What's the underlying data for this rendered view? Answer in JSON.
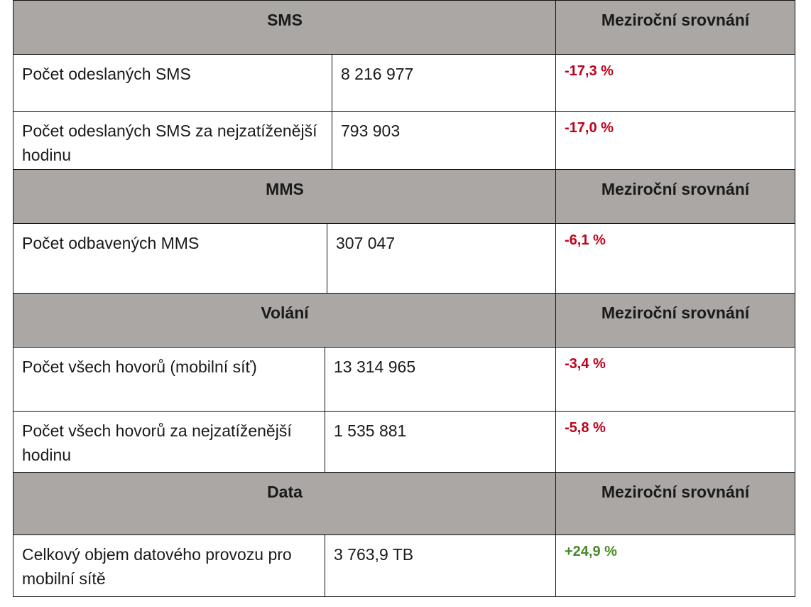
{
  "sections": [
    {
      "header": "SMS",
      "compare_header": "Meziroční srovnání",
      "rows": [
        {
          "label": "Počet odeslaných SMS",
          "value": "8 216 977",
          "change": "-17,3 %"
        },
        {
          "label": "Počet odeslaných SMS za nejzatíženější hodinu",
          "value": "793 903",
          "change": "-17,0 %"
        }
      ]
    },
    {
      "header": "MMS",
      "compare_header": "Meziroční srovnání",
      "rows": [
        {
          "label": "Počet odbavených MMS",
          "value": "307 047",
          "change": "-6,1 %"
        }
      ]
    },
    {
      "header": "Volání",
      "compare_header": "Meziroční srovnání",
      "rows": [
        {
          "label": "Počet všech hovorů (mobilní síť)",
          "value": "13 314 965",
          "change": "-3,4 %"
        },
        {
          "label": "Počet všech hovorů za nejzatíženější hodinu",
          "value": "1 535 881",
          "change": "-5,8 %"
        }
      ]
    },
    {
      "header": "Data",
      "compare_header": "Meziroční srovnání",
      "rows": [
        {
          "label": "Celkový objem datového provozu pro mobilní sítě",
          "value": "3 763,9 TB",
          "change": "+24,9 %"
        }
      ]
    }
  ],
  "colors": {
    "header_bg": "#aaa7a5",
    "negative": "#c0001a",
    "positive": "#4a8a2a"
  }
}
